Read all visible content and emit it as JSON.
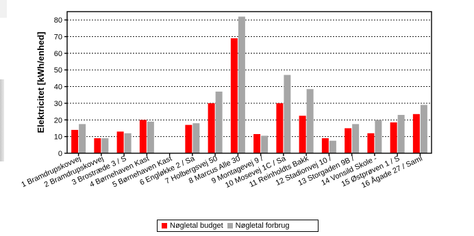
{
  "chart_data": {
    "type": "bar",
    "title": "",
    "xlabel": "",
    "ylabel": "Elektricitet [kWh/enhed]",
    "ylim": [
      0,
      85
    ],
    "yticks": [
      0,
      10,
      20,
      30,
      40,
      50,
      60,
      70,
      80
    ],
    "grid": true,
    "legend_position": "bottom",
    "categories": [
      "1 Bramdrupskovvej",
      "2 Bramdrupskovvej",
      "3 Brostræde 3 / S",
      "4 Børnehaven Kast",
      "5 Børnehaven Kast",
      "6 Engløkke 2 / Sa",
      "7 Holbergsvej 50",
      "8 Marcus Alle 30",
      "9 Montagevej 9 /",
      "10 Mosevej 1C / Sa",
      "11 Reinholdts Bakk",
      "12 Stadionvej 10 /",
      "13 Storgaden 9B /",
      "14 Vonsild Skole -",
      "15 Østprøven 1 / S",
      "16 Ågade 27 / Saml"
    ],
    "series": [
      {
        "name": "Nøgletal budget",
        "color": "#ff0000",
        "values": [
          14,
          9,
          13,
          20,
          0,
          17,
          30,
          69,
          11.5,
          30,
          22.5,
          9,
          15,
          12,
          18.5,
          23.5
        ]
      },
      {
        "name": "Nøgletal forbrug",
        "color": "#a6a6a6",
        "values": [
          17.5,
          9,
          12,
          19,
          0,
          18,
          37,
          82,
          10.5,
          47,
          38.5,
          7.5,
          17.5,
          20,
          23,
          29
        ]
      }
    ]
  }
}
